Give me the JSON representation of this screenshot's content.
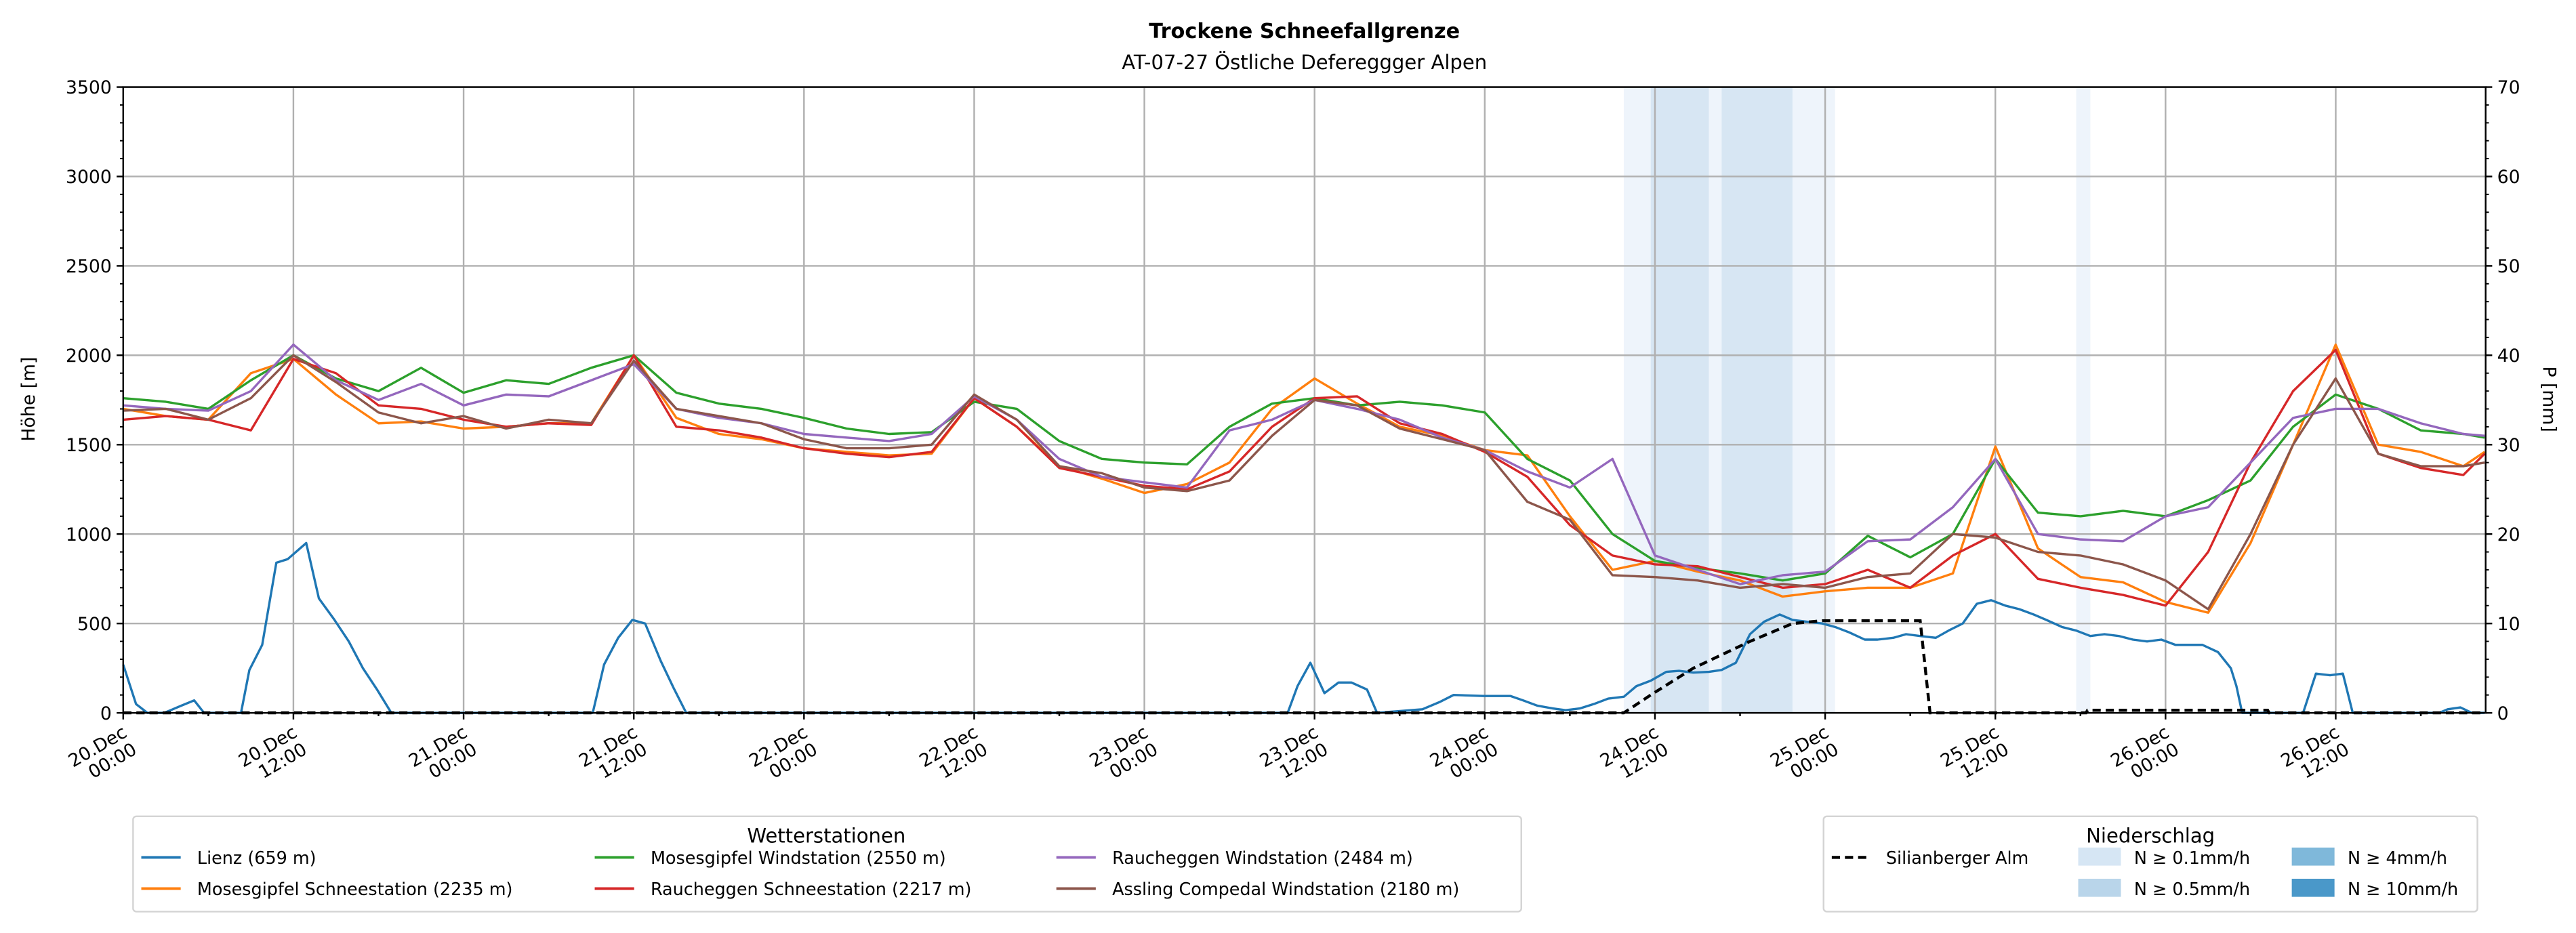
{
  "chart_data": {
    "type": "line",
    "title": "Trockene Schneefallgrenze",
    "subtitle": "AT-07-27 Östliche Defereggger Alpen",
    "ylabel": "Höhe [m]",
    "y2label": "P [mm]",
    "ylim": [
      0,
      3500
    ],
    "y2lim": [
      0,
      70
    ],
    "yticks": [
      "0",
      "500",
      "1000",
      "1500",
      "2000",
      "2500",
      "3000",
      "3500"
    ],
    "y2ticks": [
      "0",
      "10",
      "20",
      "30",
      "40",
      "50",
      "60",
      "70"
    ],
    "x_unit": "hours since 20.Dec 00:00",
    "xlim": [
      0,
      166.5
    ],
    "xticks": [
      {
        "h": 0,
        "label": "20.Dec\n00:00"
      },
      {
        "h": 12,
        "label": "20.Dec\n12:00"
      },
      {
        "h": 24,
        "label": "21.Dec\n00:00"
      },
      {
        "h": 36,
        "label": "21.Dec\n12:00"
      },
      {
        "h": 48,
        "label": "22.Dec\n00:00"
      },
      {
        "h": 60,
        "label": "22.Dec\n12:00"
      },
      {
        "h": 72,
        "label": "23.Dec\n00:00"
      },
      {
        "h": 84,
        "label": "23.Dec\n12:00"
      },
      {
        "h": 96,
        "label": "24.Dec\n00:00"
      },
      {
        "h": 108,
        "label": "24.Dec\n12:00"
      },
      {
        "h": 120,
        "label": "25.Dec\n00:00"
      },
      {
        "h": 132,
        "label": "25.Dec\n12:00"
      },
      {
        "h": 144,
        "label": "26.Dec\n00:00"
      },
      {
        "h": 156,
        "label": "26.Dec\n12:00"
      }
    ],
    "grid": true,
    "grid_x": [
      0,
      3,
      6,
      9,
      12,
      15,
      18,
      21,
      24,
      27,
      30,
      33,
      36,
      39,
      42,
      45,
      48,
      51,
      54,
      57,
      60,
      63,
      66,
      69,
      72,
      75,
      78,
      81,
      84,
      87,
      90,
      93,
      96,
      99,
      102,
      105,
      108,
      111,
      114,
      117,
      120,
      123,
      126,
      129,
      132,
      135,
      138,
      141,
      144,
      147,
      150,
      153,
      156,
      159,
      162,
      165,
      166.5
    ],
    "series": [
      {
        "name": "Lienz (659 m)",
        "color": "#1f77b4",
        "x": [
          0,
          0.9,
          1.7,
          2.9,
          4.1,
          5,
          5.7,
          8.3,
          8.9,
          9.8,
          10.8,
          11.6,
          12.9,
          13.8,
          14.9,
          15.9,
          16.9,
          17.9,
          18.9,
          33.1,
          33.9,
          34.9,
          35.9,
          36.8,
          37.9,
          38.8,
          39.7,
          82.1,
          82.8,
          83.7,
          84.7,
          85.7,
          86.6,
          87.7,
          88.4,
          91.6,
          92.8,
          93.8,
          95.9,
          97.8,
          98.7,
          99.7,
          100.8,
          101.7,
          102.7,
          103.7,
          104.7,
          105.8,
          106.7,
          107.7,
          108.8,
          109.7,
          110.7,
          111.8,
          112.7,
          113.7,
          114.7,
          115.7,
          116.8,
          117.7,
          118.7,
          119.8,
          120.7,
          121.7,
          122.8,
          123.7,
          124.8,
          125.7,
          126.7,
          127.8,
          128.7,
          129.7,
          130.7,
          131.7,
          132.7,
          133.7,
          134.7,
          135.6,
          136.7,
          137.7,
          138.7,
          139.7,
          140.7,
          141.7,
          142.7,
          143.7,
          144.7,
          145.7,
          146.6,
          147.7,
          148.6,
          149,
          149.4,
          153.7,
          154.6,
          155.6,
          156.5,
          157.2,
          163.3,
          163.9,
          164.8,
          165.6,
          166.5
        ],
        "values": [
          270,
          50,
          0,
          0,
          40,
          70,
          0,
          0,
          240,
          380,
          840,
          860,
          950,
          640,
          520,
          400,
          250,
          130,
          0,
          0,
          270,
          420,
          520,
          500,
          290,
          140,
          0,
          0,
          150,
          280,
          110,
          170,
          170,
          130,
          0,
          20,
          60,
          100,
          95,
          95,
          70,
          40,
          25,
          15,
          25,
          50,
          80,
          90,
          150,
          180,
          230,
          235,
          225,
          230,
          240,
          280,
          440,
          510,
          550,
          520,
          510,
          500,
          480,
          450,
          410,
          410,
          420,
          440,
          430,
          420,
          460,
          500,
          610,
          630,
          600,
          580,
          550,
          520,
          480,
          460,
          430,
          440,
          430,
          410,
          400,
          410,
          380,
          380,
          380,
          340,
          250,
          150,
          0,
          0,
          220,
          210,
          220,
          0,
          0,
          20,
          30,
          0,
          0
        ]
      },
      {
        "name": "Mosesgipfel Schneestation (2235 m)",
        "color": "#ff7f0e",
        "values": [
          1700,
          1660,
          1640,
          1900,
          1980,
          1780,
          1620,
          1630,
          1590,
          1600,
          1620,
          1620,
          2000,
          1650,
          1560,
          1530,
          1480,
          1460,
          1440,
          1450,
          1760,
          1600,
          1380,
          1310,
          1230,
          1280,
          1400,
          1700,
          1870,
          1730,
          1600,
          1550,
          1470,
          1440,
          1100,
          800,
          850,
          790,
          740,
          650,
          680,
          700,
          700,
          780,
          1490,
          920,
          760,
          730,
          620,
          560,
          950,
          1500,
          2060,
          1500,
          1460,
          1380,
          1460
        ]
      },
      {
        "name": "Mosesgipfel Windstation (2550 m)",
        "color": "#2ca02c",
        "values": [
          1760,
          1740,
          1700,
          1860,
          2000,
          1870,
          1800,
          1930,
          1790,
          1860,
          1840,
          1930,
          2000,
          1790,
          1730,
          1700,
          1650,
          1590,
          1560,
          1570,
          1740,
          1700,
          1520,
          1420,
          1400,
          1390,
          1600,
          1730,
          1760,
          1720,
          1740,
          1720,
          1680,
          1420,
          1300,
          1000,
          850,
          810,
          780,
          740,
          780,
          990,
          870,
          1000,
          1420,
          1120,
          1100,
          1130,
          1100,
          1190,
          1300,
          1600,
          1780,
          1700,
          1580,
          1560,
          1540
        ]
      },
      {
        "name": "Raucheggen Schneestation (2217 m)",
        "color": "#d62728",
        "values": [
          1640,
          1660,
          1640,
          1580,
          1980,
          1900,
          1720,
          1700,
          1640,
          1600,
          1620,
          1610,
          2000,
          1600,
          1580,
          1540,
          1480,
          1450,
          1430,
          1460,
          1760,
          1600,
          1370,
          1320,
          1270,
          1250,
          1350,
          1600,
          1760,
          1770,
          1620,
          1560,
          1460,
          1320,
          1050,
          880,
          830,
          820,
          760,
          700,
          720,
          800,
          700,
          880,
          1000,
          750,
          700,
          660,
          600,
          900,
          1400,
          1800,
          2030,
          1450,
          1370,
          1330,
          1450
        ]
      },
      {
        "name": "Raucheggen Windstation (2484 m)",
        "color": "#9467bd",
        "values": [
          1720,
          1700,
          1690,
          1800,
          2060,
          1860,
          1750,
          1840,
          1720,
          1780,
          1770,
          1860,
          1950,
          1700,
          1650,
          1620,
          1560,
          1540,
          1520,
          1560,
          1770,
          1640,
          1420,
          1320,
          1290,
          1260,
          1580,
          1640,
          1750,
          1700,
          1640,
          1540,
          1470,
          1350,
          1260,
          1420,
          880,
          800,
          720,
          770,
          790,
          960,
          970,
          1150,
          1420,
          1000,
          970,
          960,
          1100,
          1150,
          1400,
          1650,
          1700,
          1700,
          1620,
          1560,
          1550
        ]
      },
      {
        "name": "Assling Compedal Windstation (2180 m)",
        "color": "#8c564b",
        "values": [
          1690,
          1700,
          1640,
          1760,
          2000,
          1850,
          1680,
          1620,
          1660,
          1590,
          1640,
          1620,
          1970,
          1700,
          1660,
          1620,
          1530,
          1480,
          1480,
          1500,
          1780,
          1640,
          1380,
          1340,
          1260,
          1240,
          1300,
          1550,
          1750,
          1720,
          1590,
          1530,
          1470,
          1180,
          1080,
          770,
          760,
          740,
          700,
          720,
          700,
          760,
          780,
          1000,
          980,
          900,
          880,
          830,
          740,
          580,
          1000,
          1500,
          1870,
          1450,
          1380,
          1380,
          1400
        ]
      }
    ],
    "precip_series": {
      "name": "Silianberger Alm",
      "color": "#000000",
      "axis": "right",
      "x": [
        0,
        105.8,
        107.7,
        110.7,
        114.7,
        117.7,
        119.8,
        126.7,
        127.4,
        138.4,
        138.5,
        151.2,
        151.3,
        166.5
      ],
      "values": [
        0,
        0,
        2,
        5,
        8,
        10,
        10.3,
        10.3,
        0,
        0,
        0.3,
        0.3,
        0,
        0
      ]
    },
    "precip_bands": [
      {
        "from": 105.8,
        "to": 107.7,
        "class": "N ≥ 0.1mm/h"
      },
      {
        "from": 107.7,
        "to": 111.8,
        "class": "N ≥ 0.5mm/h"
      },
      {
        "from": 111.8,
        "to": 112.7,
        "class": "N ≥ 0.1mm/h"
      },
      {
        "from": 112.7,
        "to": 117.7,
        "class": "N ≥ 0.5mm/h"
      },
      {
        "from": 117.7,
        "to": 120.7,
        "class": "N ≥ 0.1mm/h"
      },
      {
        "from": 137.7,
        "to": 138.7,
        "class": "N ≥ 0.1mm/h"
      }
    ],
    "legend_stations": {
      "title": "Wetterstationen",
      "placement": "bottom-left"
    },
    "legend_precip": {
      "title": "Niederschlag",
      "placement": "bottom-right",
      "classes": [
        {
          "label": "N ≥ 0.1mm/h",
          "color": "#d6e6f4",
          "band_color": "#eef4fb"
        },
        {
          "label": "N ≥ 0.5mm/h",
          "color": "#b9d5ea",
          "band_color": "#d7e6f3"
        },
        {
          "label": "N ≥ 4mm/h",
          "color": "#7fb8da",
          "band_color": "#b3d2ea"
        },
        {
          "label": "N ≥ 10mm/h",
          "color": "#4a98c9",
          "band_color": "#8fbfdf"
        }
      ]
    }
  }
}
